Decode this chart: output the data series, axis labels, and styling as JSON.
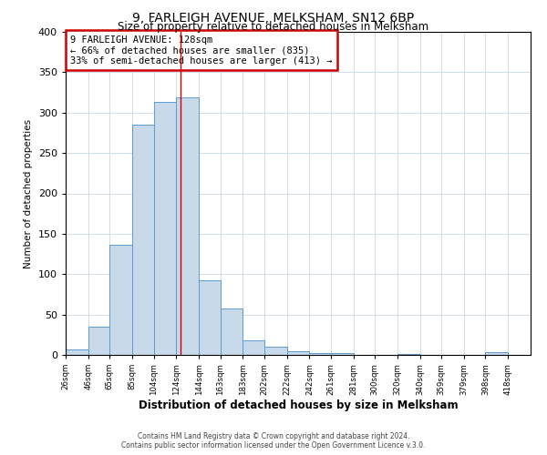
{
  "title": "9, FARLEIGH AVENUE, MELKSHAM, SN12 6BP",
  "subtitle": "Size of property relative to detached houses in Melksham",
  "xlabel": "Distribution of detached houses by size in Melksham",
  "ylabel": "Number of detached properties",
  "bar_color": "#c8d9ea",
  "bar_edge_color": "#5b9bd5",
  "grid_color": "#d0dce8",
  "vline_x": 128,
  "vline_color": "#cc0000",
  "annotation_title": "9 FARLEIGH AVENUE: 128sqm",
  "annotation_line1": "← 66% of detached houses are smaller (835)",
  "annotation_line2": "33% of semi-detached houses are larger (413) →",
  "annotation_box_color": "#cc0000",
  "bins_left": [
    26,
    46,
    65,
    85,
    104,
    124,
    144,
    163,
    183,
    202,
    222,
    242,
    261,
    281,
    300,
    320,
    340,
    359,
    379,
    398
  ],
  "bin_width": [
    20,
    19,
    20,
    19,
    20,
    20,
    19,
    20,
    19,
    20,
    20,
    19,
    20,
    19,
    20,
    20,
    19,
    20,
    19,
    20
  ],
  "counts": [
    7,
    35,
    136,
    285,
    313,
    319,
    92,
    57,
    18,
    10,
    4,
    2,
    2,
    0,
    0,
    1,
    0,
    0,
    0,
    3
  ],
  "tick_labels": [
    "26sqm",
    "46sqm",
    "65sqm",
    "85sqm",
    "104sqm",
    "124sqm",
    "144sqm",
    "163sqm",
    "183sqm",
    "202sqm",
    "222sqm",
    "242sqm",
    "261sqm",
    "281sqm",
    "300sqm",
    "320sqm",
    "340sqm",
    "359sqm",
    "379sqm",
    "398sqm",
    "418sqm"
  ],
  "tick_positions": [
    26,
    46,
    65,
    85,
    104,
    124,
    144,
    163,
    183,
    202,
    222,
    242,
    261,
    281,
    300,
    320,
    340,
    359,
    379,
    398,
    418
  ],
  "ylim": [
    0,
    400
  ],
  "xlim": [
    26,
    438
  ],
  "footer1": "Contains HM Land Registry data © Crown copyright and database right 2024.",
  "footer2": "Contains public sector information licensed under the Open Government Licence v.3.0."
}
